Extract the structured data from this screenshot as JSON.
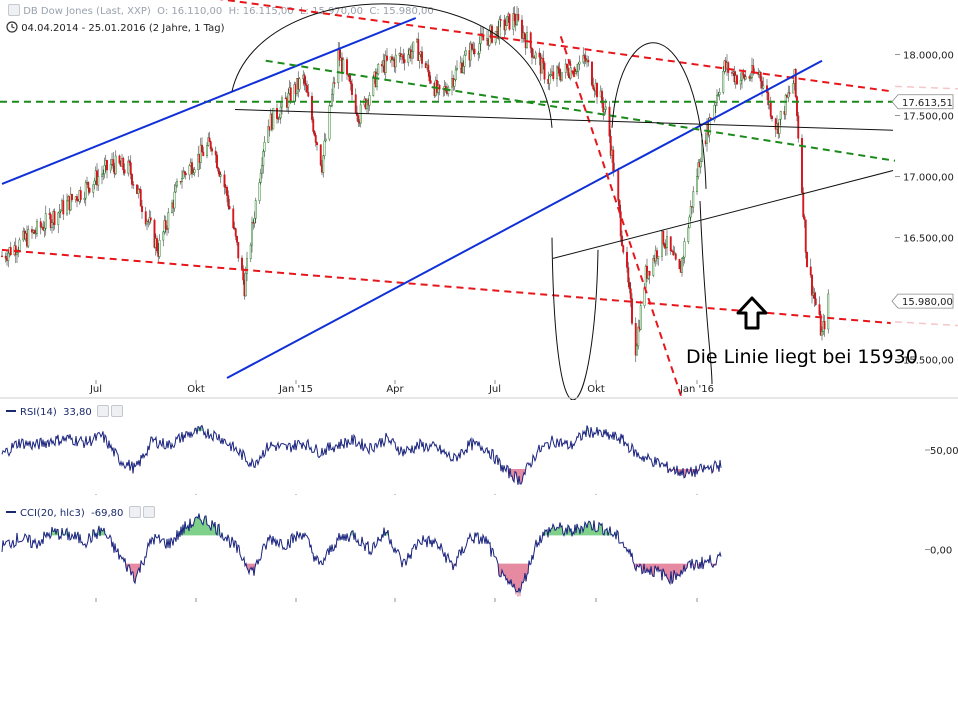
{
  "header": {
    "symbol": "DB Dow Jones (Last, XXP)",
    "open": "O: 16.110,00",
    "high": "H: 16.115,00",
    "low": "L: 15.970,00",
    "close": "C: 15.980,00",
    "range": "04.04.2014 - 25.01.2016 (2 Jahre, 1 Tag)"
  },
  "annotation": "Die Linie liegt bei 15930",
  "colors": {
    "red_trend": "#e8161b",
    "green_trend": "#1a8a1a",
    "blue_trend": "#1030d8",
    "indicator": "#1a237e",
    "overbought": "#7fd18a",
    "oversold": "#e58aa0"
  },
  "icons": [
    "up-arrow-icon",
    "settings-icon",
    "close-icon",
    "clock-icon"
  ],
  "chart_data": [
    {
      "type": "candlestick",
      "title": "DB Dow Jones (Last, XXP)",
      "x_tick_labels": [
        "Jul",
        "Okt",
        "Jan '15",
        "Apr",
        "Jul",
        "Okt",
        "Jan '16"
      ],
      "y_tick_labels": [
        "18.000,00",
        "17.500,00",
        "17.000,00",
        "16.500,00",
        "16.000,00",
        "15.500,00"
      ],
      "ylim": [
        15350,
        18300
      ],
      "last_value_label": "15.980,00",
      "price_tag": "17.613,51",
      "grid": false,
      "series": [
        {
          "x": [
            "2014-04-04",
            "2014-05-01",
            "2014-06-01",
            "2014-07-01",
            "2014-07-15",
            "2014-08-07",
            "2014-08-25",
            "2014-09-19",
            "2014-10-01",
            "2014-10-15",
            "2014-11-01",
            "2014-12-01",
            "2014-12-16",
            "2014-12-29",
            "2015-01-15",
            "2015-02-01",
            "2015-03-02",
            "2015-03-20",
            "2015-04-15",
            "2015-05-19",
            "2015-06-15",
            "2015-07-15",
            "2015-08-01",
            "2015-08-24",
            "2015-09-01",
            "2015-09-15",
            "2015-09-28",
            "2015-10-15",
            "2015-11-03",
            "2015-11-15",
            "2015-12-01",
            "2015-12-15",
            "2015-12-29",
            "2016-01-08",
            "2016-01-20",
            "2016-01-25"
          ],
          "values": [
            16350,
            16550,
            16830,
            17100,
            17060,
            16400,
            17000,
            17280,
            16850,
            16100,
            17400,
            17800,
            17100,
            18000,
            17500,
            17900,
            18050,
            17650,
            18050,
            18300,
            17800,
            17950,
            17500,
            15600,
            16200,
            16500,
            16200,
            17200,
            17900,
            17800,
            17850,
            17400,
            17800,
            16300,
            15700,
            15980
          ]
        }
      ],
      "overlays": [
        {
          "name": "",
          "color": "#1a8a1a",
          "style": "dashed",
          "y": 17613.51
        },
        {
          "name": "",
          "color": "#e8161b",
          "style": "dashed",
          "from": [
            "2014-04-04",
            16400
          ],
          "to": [
            "2016-03-15",
            15800
          ]
        },
        {
          "name": "",
          "color": "#e8161b",
          "style": "dashed",
          "from": [
            "2014-04-04",
            18700
          ],
          "to": [
            "2016-03-15",
            17700
          ]
        },
        {
          "name": "",
          "color": "#1030d8",
          "style": "solid",
          "from": [
            "2014-04-04",
            16940
          ],
          "to": [
            "2015-03-01",
            18300
          ]
        },
        {
          "name": "",
          "color": "#1030d8",
          "style": "solid",
          "from": [
            "2014-10-01",
            15350
          ],
          "to": [
            "2016-01-20",
            17950
          ]
        }
      ]
    },
    {
      "type": "line",
      "title": "RSI(14)",
      "last_value": "33,80",
      "y_tick_labels": [
        "50,00"
      ],
      "ylim": [
        10,
        90
      ],
      "series": [
        {
          "name": "RSI(14)",
          "values": [
            45,
            58,
            55,
            60,
            62,
            58,
            65,
            40,
            30,
            60,
            55,
            66,
            70,
            64,
            50,
            35,
            55,
            52,
            58,
            48,
            55,
            60,
            52,
            62,
            48,
            55,
            52,
            40,
            56,
            52,
            30,
            18,
            48,
            60,
            54,
            70,
            66,
            62,
            45,
            38,
            30,
            25,
            30,
            34
          ]
        }
      ]
    },
    {
      "type": "line",
      "title": "CCI(20, hlc3)",
      "last_value": "-69,80",
      "y_tick_labels": [
        "0,00"
      ],
      "ylim": [
        -300,
        300
      ],
      "series": [
        {
          "name": "CCI(20, hlc3)",
          "values": [
            20,
            80,
            40,
            120,
            100,
            60,
            140,
            -40,
            -200,
            80,
            40,
            160,
            220,
            140,
            10,
            -160,
            80,
            40,
            120,
            -120,
            60,
            110,
            0,
            130,
            -110,
            70,
            40,
            -120,
            90,
            60,
            -220,
            -300,
            60,
            160,
            120,
            180,
            150,
            70,
            -120,
            -150,
            -200,
            -120,
            -90,
            -70
          ]
        }
      ]
    }
  ]
}
